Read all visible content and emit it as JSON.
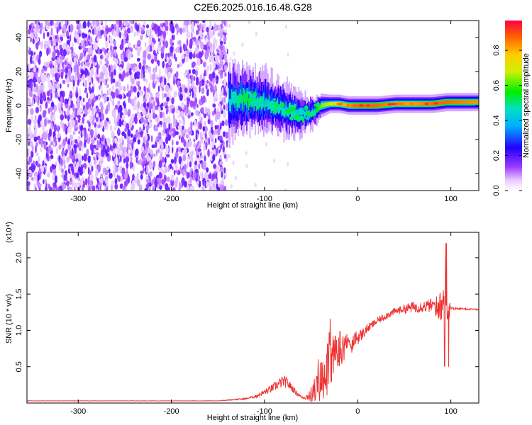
{
  "title": "C2E6.2025.016.16.48.G28",
  "chart_data": [
    {
      "type": "heatmap",
      "xlabel": "Height of straight line (km)",
      "ylabel": "Frequency (Hz)",
      "xlim": [
        -355,
        130
      ],
      "ylim": [
        -50,
        50
      ],
      "xticks": [
        -300,
        -200,
        -100,
        0,
        100
      ],
      "yticks": [
        -40,
        -20,
        0,
        20,
        40
      ],
      "xtick_labels": [
        "-300",
        "-200",
        "-100",
        "0",
        "100"
      ],
      "ytick_labels": [
        "-40",
        "-20",
        "0",
        "20",
        "40"
      ],
      "colorbar": {
        "label": "Normalized spectral amplitude",
        "range": [
          0,
          0.97
        ],
        "ticks": [
          0.0,
          0.2,
          0.4,
          0.6,
          0.8
        ],
        "tick_labels": [
          "0.0",
          "0.2",
          "0.4",
          "0.6",
          "0.8"
        ]
      },
      "signal_track": {
        "x": [
          -140,
          -120,
          -100,
          -80,
          -70,
          -60,
          -50,
          -45,
          -40,
          -30,
          -20,
          -10,
          0,
          20,
          40,
          60,
          80,
          95,
          130
        ],
        "center_freq_hz": [
          3,
          4,
          2,
          -2,
          -4,
          -5,
          -4,
          -3,
          0,
          1,
          1,
          0,
          0,
          0,
          1,
          1,
          1,
          2,
          2
        ],
        "half_width_hz": [
          12,
          10,
          9,
          8,
          7,
          6,
          5,
          4,
          4,
          3,
          3,
          3,
          3,
          3,
          3,
          3,
          3,
          3,
          3
        ],
        "peak_amplitude": [
          0.45,
          0.55,
          0.5,
          0.48,
          0.5,
          0.45,
          0.5,
          0.55,
          0.65,
          0.7,
          0.8,
          0.85,
          0.9,
          0.9,
          0.85,
          0.85,
          0.9,
          0.9,
          0.85
        ]
      },
      "noise_region_x": [
        -355,
        -140
      ],
      "noise_amplitude_range": [
        0.05,
        0.2
      ]
    },
    {
      "type": "line",
      "xlabel": "Height of straight line (km)",
      "ylabel": "SNR (10 * v/v)",
      "y_multiplier_label": "(x10⁴)",
      "xlim": [
        -355,
        130
      ],
      "ylim": [
        0,
        2.35
      ],
      "xticks": [
        -300,
        -200,
        -100,
        0,
        100
      ],
      "yticks": [
        0.5,
        1.0,
        1.5,
        2.0
      ],
      "xtick_labels": [
        "-300",
        "-200",
        "-100",
        "0",
        "100"
      ],
      "ytick_labels": [
        "0.5",
        "1.0",
        "1.5",
        "2.0"
      ],
      "series": [
        {
          "color": "#ee3333",
          "x": [
            -355,
            -300,
            -200,
            -150,
            -120,
            -110,
            -100,
            -95,
            -90,
            -85,
            -80,
            -75,
            -70,
            -65,
            -60,
            -55,
            -50,
            -45,
            -40,
            -35,
            -30,
            -25,
            -20,
            -15,
            -10,
            -5,
            0,
            5,
            10,
            20,
            30,
            40,
            50,
            60,
            70,
            80,
            90,
            95,
            100,
            110,
            120,
            130
          ],
          "y": [
            0.03,
            0.03,
            0.03,
            0.03,
            0.06,
            0.09,
            0.15,
            0.18,
            0.22,
            0.26,
            0.3,
            0.27,
            0.2,
            0.13,
            0.08,
            0.08,
            0.13,
            0.2,
            0.3,
            0.42,
            0.55,
            0.65,
            0.75,
            0.78,
            0.82,
            0.85,
            0.9,
            0.95,
            1.02,
            1.12,
            1.2,
            1.26,
            1.3,
            1.32,
            1.33,
            1.34,
            1.32,
            1.3,
            1.3,
            1.3,
            1.29,
            1.29
          ],
          "noise": [
            0.002,
            0.002,
            0.002,
            0.003,
            0.01,
            0.02,
            0.04,
            0.05,
            0.06,
            0.07,
            0.08,
            0.07,
            0.05,
            0.03,
            0.02,
            0.04,
            0.12,
            0.2,
            0.3,
            0.35,
            0.4,
            0.35,
            0.3,
            0.2,
            0.15,
            0.12,
            0.1,
            0.08,
            0.06,
            0.05,
            0.05,
            0.05,
            0.06,
            0.08,
            0.08,
            0.1,
            0.25,
            0.35,
            0.02,
            0.01,
            0.01,
            0.01
          ]
        }
      ]
    }
  ]
}
